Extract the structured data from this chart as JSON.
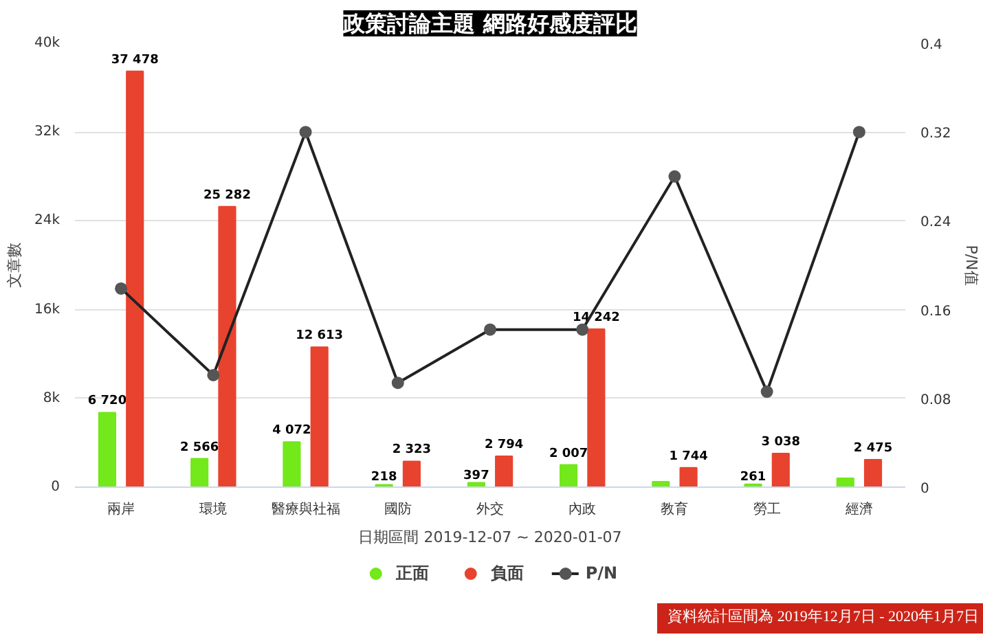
{
  "chart_data": {
    "type": "bar",
    "title": "政策討論主題 網路好感度評比",
    "categories": [
      "兩岸",
      "環境",
      "醫療與社福",
      "國防",
      "外交",
      "內政",
      "教育",
      "勞工",
      "經濟"
    ],
    "xlabel": "日期區間 2019-12-07 ~ 2020-01-07",
    "ylabel": "文章數",
    "y2label": "P/N值",
    "series": [
      {
        "name": "正面",
        "color": "#73e81a",
        "values": [
          6720,
          2566,
          4072,
          218,
          397,
          2007,
          500,
          261,
          800
        ],
        "value_labels": [
          "6 720",
          "2 566",
          "4 072",
          "218",
          "397",
          "2 007",
          null,
          "261",
          null
        ]
      },
      {
        "name": "負面",
        "color": "#e8432e",
        "values": [
          37478,
          25282,
          12613,
          2323,
          2794,
          14242,
          1744,
          3038,
          2475
        ],
        "value_labels": [
          "37 478",
          "25 282",
          "12 613",
          "2 323",
          "2 794",
          "14 242",
          "1 744",
          "3 038",
          "2 475"
        ]
      },
      {
        "name": "P/N",
        "type": "line",
        "axis": "y2",
        "color": "#222222",
        "marker": "circle",
        "values": [
          0.179,
          0.101,
          0.32,
          0.094,
          0.142,
          0.142,
          0.28,
          0.086,
          0.32
        ]
      }
    ],
    "ylim": [
      0,
      40000
    ],
    "yticks": [
      {
        "value": 0,
        "label": "0"
      },
      {
        "value": 8000,
        "label": "8k"
      },
      {
        "value": 16000,
        "label": "16k"
      },
      {
        "value": 24000,
        "label": "24k"
      },
      {
        "value": 32000,
        "label": "32k"
      },
      {
        "value": 40000,
        "label": "40k"
      }
    ],
    "y2lim": [
      0,
      0.4
    ],
    "y2ticks": [
      0,
      0.08,
      0.16,
      0.24,
      0.32,
      0.4
    ],
    "grid": "y",
    "legend": "bottom",
    "annotations": [
      "資料統計區間為 2019年12月7日 - 2020年1月7日"
    ]
  }
}
